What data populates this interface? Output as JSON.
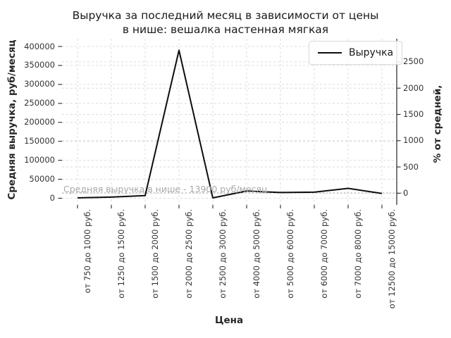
{
  "title": {
    "line1": "Выручка за последний месяц в зависимости от цены",
    "line2": "в нише: вешалка настенная мягкая"
  },
  "chart_data": {
    "type": "line",
    "title": "Выручка за последний месяц в зависимости от цены в нише: вешалка настенная мягкая",
    "categories": [
      "от 750 до 1000 руб.",
      "от 1250 до 1500 руб.",
      "от 1500 до 2000 руб.",
      "от 2000 до 2500 руб.",
      "от 2500 до 3000 руб.",
      "от 4000 до 5000 руб.",
      "от 5000 до 6000 руб.",
      "от 6000 до 7000 руб.",
      "от 7000 до 8000 руб.",
      "от 12500 до 15000 руб."
    ],
    "series": [
      {
        "name": "Выручка",
        "color": "#0d0d0d",
        "values": [
          1000,
          3000,
          7000,
          390000,
          1000,
          19000,
          15000,
          16000,
          26000,
          12500
        ]
      }
    ],
    "xlabel": "Цена",
    "ylabel_left": "Средняя выручка, руб/месяц",
    "ylabel_right": "% от средней,",
    "y_left_ticks": [
      0,
      50000,
      100000,
      150000,
      200000,
      250000,
      300000,
      350000,
      400000
    ],
    "y_right_ticks": [
      0,
      500,
      1000,
      1500,
      2000,
      2500
    ],
    "ylim_left": [
      0,
      400000
    ],
    "grid": "dashed, both y-axes and x categories",
    "legend": {
      "label": "Выручка",
      "position": "upper right"
    },
    "annotation": {
      "text": "Средняя выручка в нише - 13900 руб/месяц",
      "value": 13900,
      "line_style": "dotted"
    },
    "average_value_rub": 13900
  },
  "colors": {
    "line": "#0d0d0d",
    "grid": "#dcdcdc",
    "avg_line": "#b3b3b3",
    "annotation_text": "#a8a8a8",
    "tick_text": "#333333",
    "spine": "#262626",
    "background": "#ffffff"
  }
}
